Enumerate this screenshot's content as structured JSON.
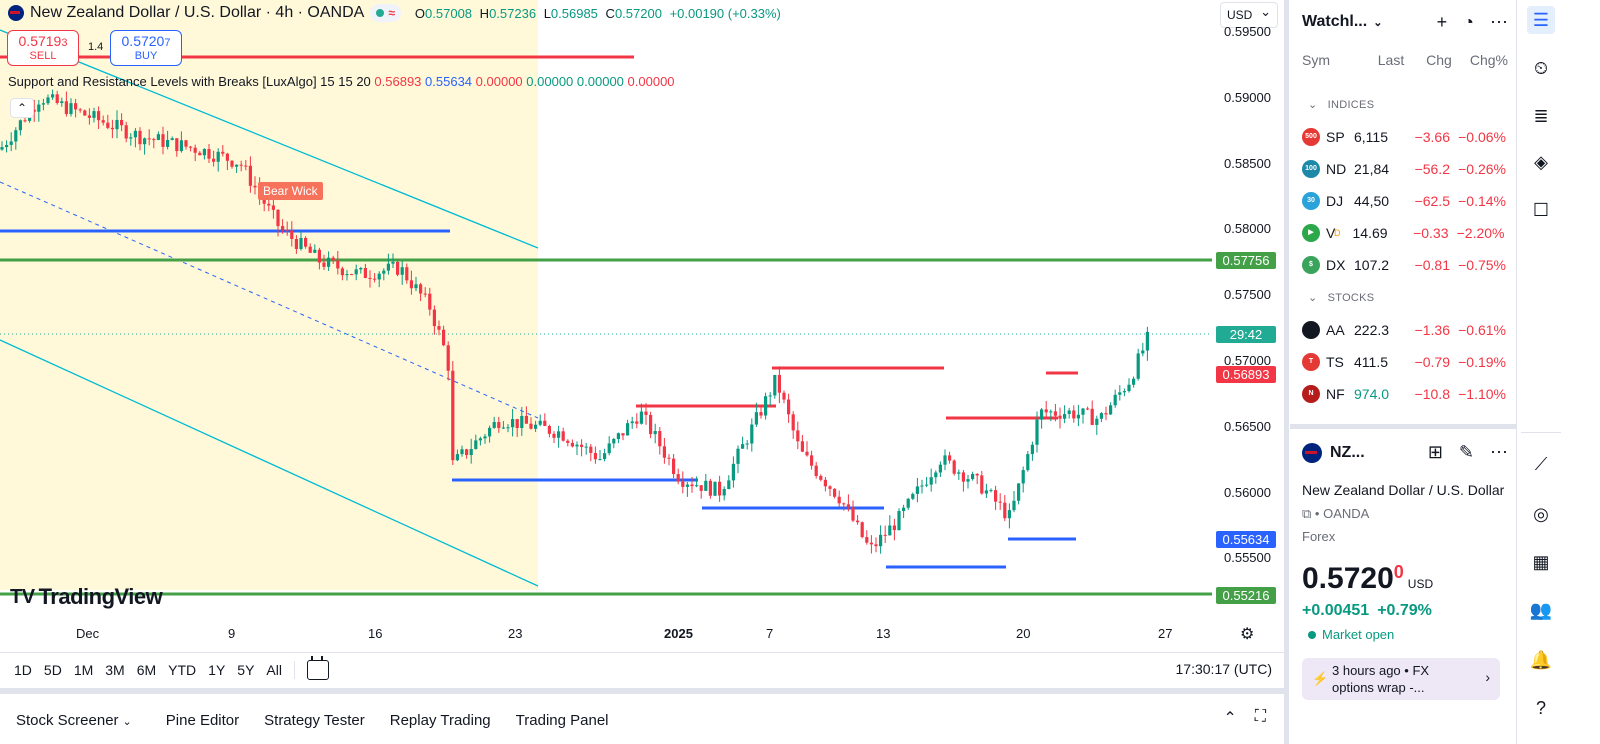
{
  "chart": {
    "title": "New Zealand Dollar / U.S. Dollar · 4h · OANDA",
    "ohlc": {
      "o": "0.57008",
      "h": "0.57236",
      "l": "0.56985",
      "c": "0.57200",
      "change": "+0.00190 (+0.33%)"
    },
    "sell": {
      "price": "0.5719",
      "sup": "3",
      "label": "SELL"
    },
    "buy": {
      "price": "0.5720",
      "sup": "7",
      "label": "BUY"
    },
    "spread": "1.4",
    "currency": "USD",
    "indicator": {
      "name": "Support and Resistance Levels with Breaks [LuxAlgo] 15 15 20",
      "v1": "0.56893",
      "v2": "0.55634",
      "v3": "0.00000",
      "v4": "0.00000",
      "v5": "0.00000",
      "v6": "0.00000"
    },
    "bear_wick_label": "Bear Wick",
    "logo_text": "TradingView",
    "price_axis": [
      "0.59500",
      "0.59000",
      "0.58500",
      "0.58000",
      "0.57500",
      "0.57000",
      "0.56500",
      "0.56000",
      "0.55500"
    ],
    "price_tags": {
      "upper_support": "0.57756",
      "countdown": "29:42",
      "resistance": "0.56893",
      "support": "0.55634",
      "lower_support": "0.55216"
    },
    "time_axis": [
      {
        "label": "Dec",
        "bold": false
      },
      {
        "label": "9",
        "bold": false
      },
      {
        "label": "16",
        "bold": false
      },
      {
        "label": "23",
        "bold": false
      },
      {
        "label": "2025",
        "bold": true
      },
      {
        "label": "7",
        "bold": false
      },
      {
        "label": "13",
        "bold": false
      },
      {
        "label": "20",
        "bold": false
      },
      {
        "label": "27",
        "bold": false
      }
    ],
    "colors": {
      "up": "#089981",
      "down": "#f23645",
      "resistance": "#f23645",
      "support": "#2962ff",
      "green_line": "#43a047",
      "channel": "#00bcd4",
      "zone_fill": "#fff9d9"
    }
  },
  "timeframes": [
    "1D",
    "5D",
    "1M",
    "3M",
    "6M",
    "YTD",
    "1Y",
    "5Y",
    "All"
  ],
  "clock": "17:30:17 (UTC)",
  "bottom_tabs": [
    "Stock Screener",
    "Pine Editor",
    "Strategy Tester",
    "Replay Trading",
    "Trading Panel"
  ],
  "watchlist": {
    "title": "Watchl...",
    "columns": [
      "Sym",
      "Last",
      "Chg",
      "Chg%"
    ],
    "sections": [
      {
        "name": "INDICES",
        "rows": [
          {
            "badge": "500",
            "color": "#e53935",
            "sym": "SP",
            "last": "6,115",
            "chg": "−3.66",
            "chgp": "−0.06%"
          },
          {
            "badge": "100",
            "color": "#1e88a8",
            "sym": "ND",
            "last": "21,84",
            "chg": "−56.2",
            "chgp": "−0.26%"
          },
          {
            "badge": "30",
            "color": "#29a3d9",
            "sym": "DJ",
            "last": "44,50",
            "chg": "−62.5",
            "chgp": "−0.14%"
          },
          {
            "badge": "▶",
            "color": "#2ca84a",
            "sym": "V",
            "last": "14.69",
            "chg": "−0.33",
            "chgp": "−2.20%"
          },
          {
            "badge": "$",
            "color": "#3aa35c",
            "sym": "DX",
            "last": "107.2",
            "chg": "−0.81",
            "chgp": "−0.75%"
          }
        ]
      },
      {
        "name": "STOCKS",
        "rows": [
          {
            "badge": "",
            "color": "#131722",
            "sym": "AA",
            "last": "222.3",
            "chg": "−1.36",
            "chgp": "−0.61%"
          },
          {
            "badge": "T",
            "color": "#e53935",
            "sym": "TS",
            "last": "411.5",
            "chg": "−0.79",
            "chgp": "−0.19%"
          },
          {
            "badge": "N",
            "color": "#b71c1c",
            "sym": "NF",
            "last": "974.0",
            "chg": "−10.8",
            "chgp": "−1.10%"
          }
        ]
      }
    ],
    "v_marker": "D"
  },
  "details": {
    "symbol": "NZ...",
    "name": "New Zealand Dollar / U.S. Dollar",
    "broker": "OANDA",
    "type": "Forex",
    "price": "0.5720",
    "price_sup": "0",
    "currency": "USD",
    "change": "+0.00451",
    "change_pct": "+0.79%",
    "market_status": "Market open",
    "news_time": "3 hours ago",
    "news_source": "FX",
    "news_text": "options wrap -..."
  }
}
